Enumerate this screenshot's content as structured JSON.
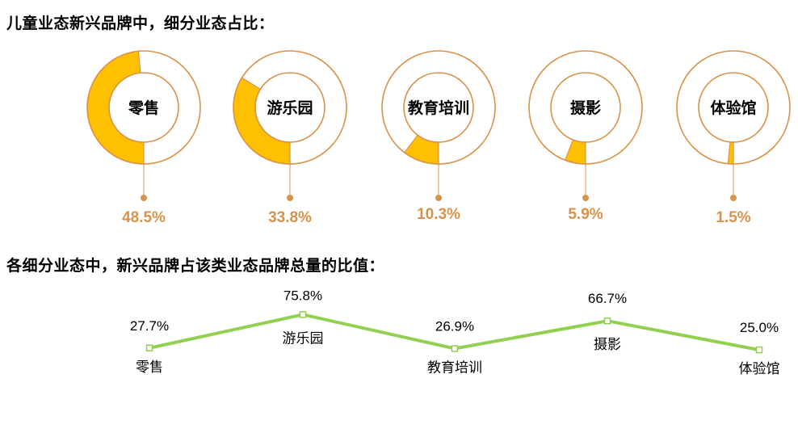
{
  "headings": {
    "share_title": "儿童业态新兴品牌中，细分业态占比：",
    "ratio_title": "各细分业态中，新兴品牌占该类业态品牌总量的比值："
  },
  "colors": {
    "ring_outline": "#d9924a",
    "fill": "#ffc000",
    "pct_text": "#d9924a",
    "line": "#92d050",
    "marker_fill": "#ffffff"
  },
  "chart_data": [
    {
      "type": "pie",
      "variant": "donut",
      "title": "儿童业态新兴品牌中，细分业态占比：",
      "categories": [
        "零售",
        "游乐园",
        "教育培训",
        "摄影",
        "体验馆"
      ],
      "values": [
        48.5,
        33.8,
        10.3,
        5.9,
        1.5
      ],
      "value_labels": [
        "48.5%",
        "33.8%",
        "10.3%",
        "5.9%",
        "1.5%"
      ],
      "unit": "%"
    },
    {
      "type": "line",
      "title": "各细分业态中，新兴品牌占该类业态品牌总量的比值：",
      "categories": [
        "零售",
        "游乐园",
        "教育培训",
        "摄影",
        "体验馆"
      ],
      "values": [
        27.7,
        75.8,
        26.9,
        66.7,
        25.0
      ],
      "value_labels": [
        "27.7%",
        "75.8%",
        "26.9%",
        "66.7%",
        "25.0%"
      ],
      "unit": "%",
      "marker": "square"
    }
  ]
}
